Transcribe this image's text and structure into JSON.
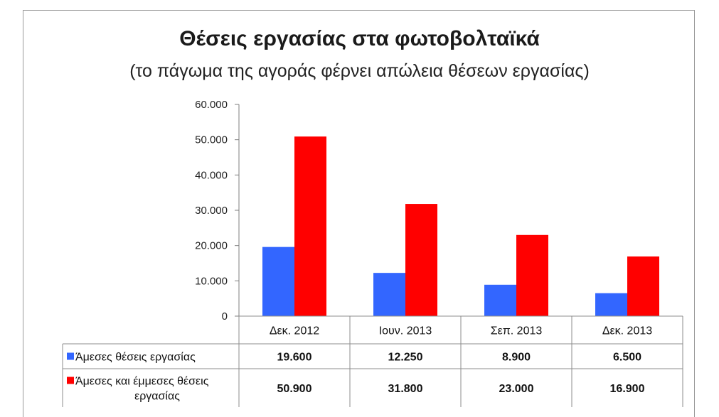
{
  "chart_data": {
    "type": "bar",
    "title": "Θέσεις εργασίας στα φωτοβολταϊκά",
    "subtitle": "(το πάγωμα της αγοράς φέρνει απώλεια θέσεων εργασίας)",
    "categories": [
      "Δεκ. 2012",
      "Ιουν. 2013",
      "Σεπ. 2013",
      "Δεκ. 2013"
    ],
    "ylim": [
      0,
      60000
    ],
    "yticks": [
      0,
      10000,
      20000,
      30000,
      40000,
      50000,
      60000
    ],
    "ytick_labels": [
      "0",
      "10.000",
      "20.000",
      "30.000",
      "40.000",
      "50.000",
      "60.000"
    ],
    "grid": false,
    "legend": "data-table",
    "series": [
      {
        "name": "Άμεσες θέσεις εργασίας",
        "name_lines": [
          "Άμεσες θέσεις εργασίας"
        ],
        "color": "#3366ff",
        "values": [
          19600,
          12250,
          8900,
          6500
        ],
        "value_labels": [
          "19.600",
          "12.250",
          "8.900",
          "6.500"
        ]
      },
      {
        "name": "Άμεσες και έμμεσες θέσεις εργασίας",
        "name_lines": [
          "Άμεσες και έμμεσες θέσεις",
          "εργασίας"
        ],
        "color": "#ff0000",
        "values": [
          50900,
          31800,
          23000,
          16900
        ],
        "value_labels": [
          "50.900",
          "31.800",
          "23.000",
          "16.900"
        ]
      }
    ]
  }
}
